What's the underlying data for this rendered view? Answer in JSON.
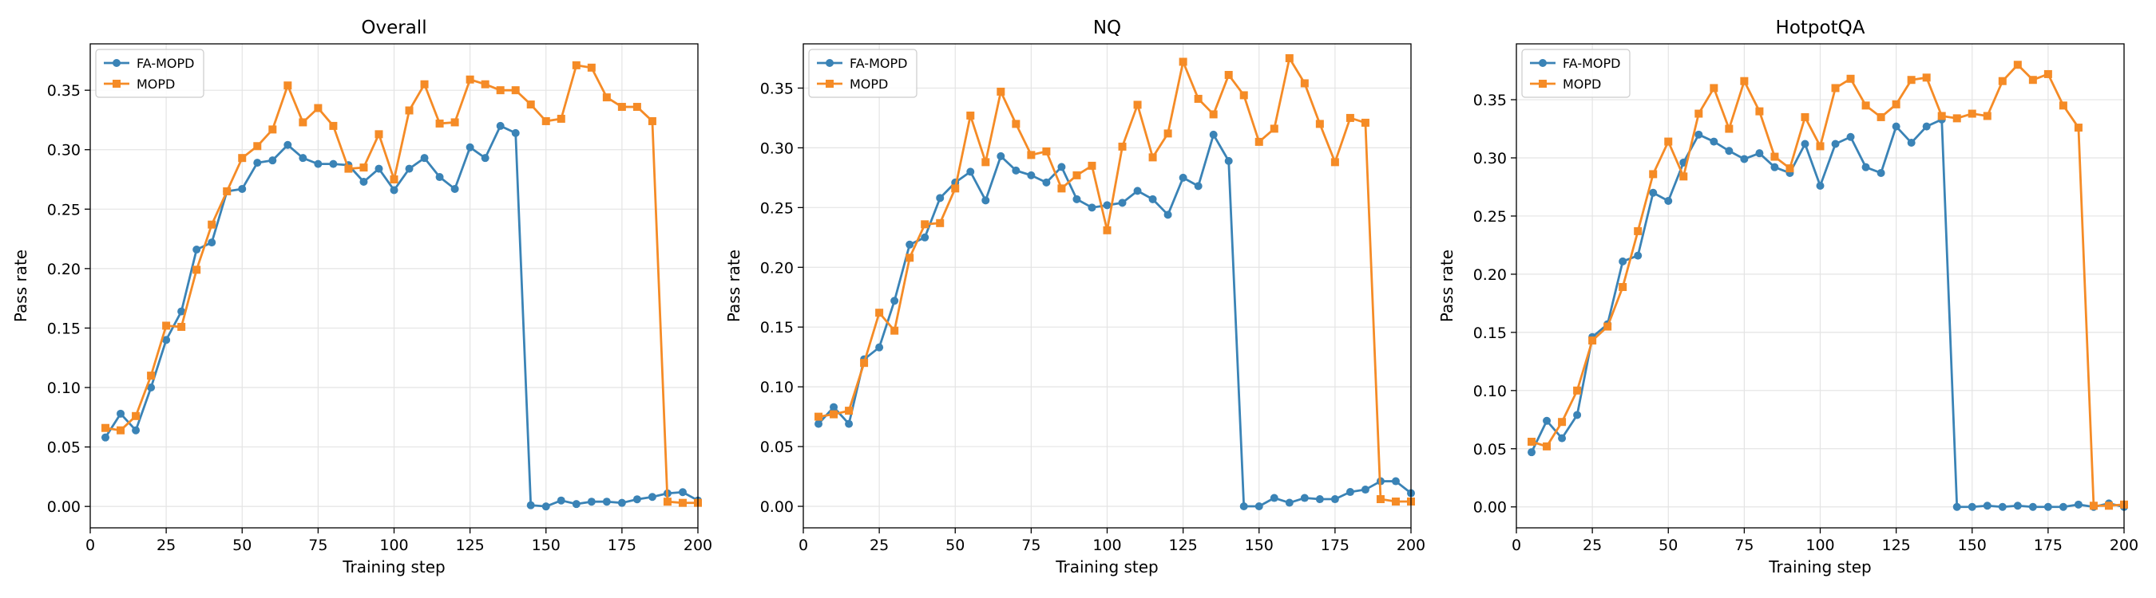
{
  "colors": {
    "fa_mopd": "#3a83b6",
    "mopd": "#f58b26",
    "grid": "#e4e4e4",
    "axis": "#000000"
  },
  "chart_data": [
    {
      "type": "line",
      "title": "Overall",
      "xlabel": "Training step",
      "ylabel": "Pass rate",
      "xlim": [
        0,
        200
      ],
      "ylim": [
        -0.018,
        0.389
      ],
      "xticks": [
        0,
        25,
        50,
        75,
        100,
        125,
        150,
        175,
        200
      ],
      "xtick_labels": [
        "0",
        "25",
        "50",
        "75",
        "100",
        "125",
        "150",
        "175",
        "200"
      ],
      "yticks": [
        0,
        0.05,
        0.1,
        0.15,
        0.2,
        0.25,
        0.3,
        0.35
      ],
      "ytick_labels": [
        "0.00",
        "0.05",
        "0.10",
        "0.15",
        "0.20",
        "0.25",
        "0.30",
        "0.35"
      ],
      "grid": true,
      "legend_position": "top-left",
      "x": [
        5,
        10,
        15,
        20,
        25,
        30,
        35,
        40,
        45,
        50,
        55,
        60,
        65,
        70,
        75,
        80,
        85,
        90,
        95,
        100,
        105,
        110,
        115,
        120,
        125,
        130,
        135,
        140,
        145,
        150,
        155,
        160,
        165,
        170,
        175,
        180,
        185,
        190,
        195,
        200
      ],
      "series": [
        {
          "name": "FA-MOPD",
          "marker": "circle",
          "values": [
            0.058,
            0.078,
            0.064,
            0.1,
            0.14,
            0.164,
            0.216,
            0.222,
            0.265,
            0.267,
            0.289,
            0.291,
            0.304,
            0.293,
            0.288,
            0.288,
            0.287,
            0.273,
            0.284,
            0.266,
            0.284,
            0.293,
            0.277,
            0.267,
            0.302,
            0.293,
            0.32,
            0.314,
            0.001,
            0.0,
            0.005,
            0.002,
            0.004,
            0.004,
            0.003,
            0.006,
            0.008,
            0.011,
            0.012,
            0.005
          ]
        },
        {
          "name": "MOPD",
          "marker": "square",
          "values": [
            0.066,
            0.064,
            0.076,
            0.11,
            0.152,
            0.151,
            0.199,
            0.237,
            0.265,
            0.293,
            0.303,
            0.317,
            0.354,
            0.323,
            0.335,
            0.32,
            0.284,
            0.285,
            0.313,
            0.275,
            0.333,
            0.355,
            0.322,
            0.323,
            0.359,
            0.355,
            0.35,
            0.35,
            0.338,
            0.324,
            0.326,
            0.371,
            0.369,
            0.344,
            0.336,
            0.336,
            0.324,
            0.004,
            0.003,
            0.003
          ]
        }
      ]
    },
    {
      "type": "line",
      "title": "NQ",
      "xlabel": "Training step",
      "ylabel": "Pass rate",
      "xlim": [
        0,
        200
      ],
      "ylim": [
        -0.018,
        0.387
      ],
      "xticks": [
        0,
        25,
        50,
        75,
        100,
        125,
        150,
        175,
        200
      ],
      "xtick_labels": [
        "0",
        "25",
        "50",
        "75",
        "100",
        "125",
        "150",
        "175",
        "200"
      ],
      "yticks": [
        0,
        0.05,
        0.1,
        0.15,
        0.2,
        0.25,
        0.3,
        0.35
      ],
      "ytick_labels": [
        "0.00",
        "0.05",
        "0.10",
        "0.15",
        "0.20",
        "0.25",
        "0.30",
        "0.35"
      ],
      "grid": true,
      "legend_position": "top-left",
      "x": [
        5,
        10,
        15,
        20,
        25,
        30,
        35,
        40,
        45,
        50,
        55,
        60,
        65,
        70,
        75,
        80,
        85,
        90,
        95,
        100,
        105,
        110,
        115,
        120,
        125,
        130,
        135,
        140,
        145,
        150,
        155,
        160,
        165,
        170,
        175,
        180,
        185,
        190,
        195,
        200
      ],
      "series": [
        {
          "name": "FA-MOPD",
          "marker": "circle",
          "values": [
            0.069,
            0.083,
            0.069,
            0.123,
            0.133,
            0.172,
            0.219,
            0.225,
            0.258,
            0.271,
            0.28,
            0.256,
            0.293,
            0.281,
            0.277,
            0.271,
            0.284,
            0.257,
            0.25,
            0.252,
            0.254,
            0.264,
            0.257,
            0.244,
            0.275,
            0.268,
            0.311,
            0.289,
            0.0,
            0.0,
            0.007,
            0.003,
            0.007,
            0.006,
            0.006,
            0.012,
            0.014,
            0.021,
            0.021,
            0.011
          ]
        },
        {
          "name": "MOPD",
          "marker": "square",
          "values": [
            0.075,
            0.077,
            0.08,
            0.12,
            0.162,
            0.147,
            0.208,
            0.236,
            0.237,
            0.266,
            0.327,
            0.288,
            0.347,
            0.32,
            0.294,
            0.297,
            0.266,
            0.277,
            0.285,
            0.231,
            0.301,
            0.336,
            0.292,
            0.312,
            0.372,
            0.341,
            0.328,
            0.361,
            0.344,
            0.305,
            0.316,
            0.375,
            0.354,
            0.32,
            0.288,
            0.325,
            0.321,
            0.006,
            0.004,
            0.004
          ]
        }
      ]
    },
    {
      "type": "line",
      "title": "HotpotQA",
      "xlabel": "Training step",
      "ylabel": "Pass rate",
      "xlim": [
        0,
        200
      ],
      "ylim": [
        -0.018,
        0.398
      ],
      "xticks": [
        0,
        25,
        50,
        75,
        100,
        125,
        150,
        175,
        200
      ],
      "xtick_labels": [
        "0",
        "25",
        "50",
        "75",
        "100",
        "125",
        "150",
        "175",
        "200"
      ],
      "yticks": [
        0,
        0.05,
        0.1,
        0.15,
        0.2,
        0.25,
        0.3,
        0.35
      ],
      "ytick_labels": [
        "0.00",
        "0.05",
        "0.10",
        "0.15",
        "0.20",
        "0.25",
        "0.30",
        "0.35"
      ],
      "grid": true,
      "legend_position": "top-left",
      "x": [
        5,
        10,
        15,
        20,
        25,
        30,
        35,
        40,
        45,
        50,
        55,
        60,
        65,
        70,
        75,
        80,
        85,
        90,
        95,
        100,
        105,
        110,
        115,
        120,
        125,
        130,
        135,
        140,
        145,
        150,
        155,
        160,
        165,
        170,
        175,
        180,
        185,
        190,
        195,
        200
      ],
      "series": [
        {
          "name": "FA-MOPD",
          "marker": "circle",
          "values": [
            0.047,
            0.074,
            0.059,
            0.079,
            0.146,
            0.157,
            0.211,
            0.216,
            0.27,
            0.263,
            0.296,
            0.32,
            0.314,
            0.306,
            0.299,
            0.304,
            0.292,
            0.287,
            0.312,
            0.276,
            0.312,
            0.318,
            0.292,
            0.287,
            0.327,
            0.313,
            0.327,
            0.333,
            0.0,
            0.0,
            0.001,
            0.0,
            0.001,
            0.0,
            0.0,
            0.0,
            0.002,
            0.0,
            0.003,
            0.0
          ]
        },
        {
          "name": "MOPD",
          "marker": "square",
          "values": [
            0.056,
            0.052,
            0.073,
            0.1,
            0.143,
            0.155,
            0.189,
            0.237,
            0.286,
            0.314,
            0.284,
            0.338,
            0.36,
            0.325,
            0.366,
            0.34,
            0.301,
            0.291,
            0.335,
            0.31,
            0.36,
            0.368,
            0.345,
            0.335,
            0.346,
            0.367,
            0.369,
            0.336,
            0.334,
            0.338,
            0.336,
            0.366,
            0.38,
            0.367,
            0.372,
            0.345,
            0.326,
            0.001,
            0.001,
            0.002
          ]
        }
      ]
    }
  ]
}
